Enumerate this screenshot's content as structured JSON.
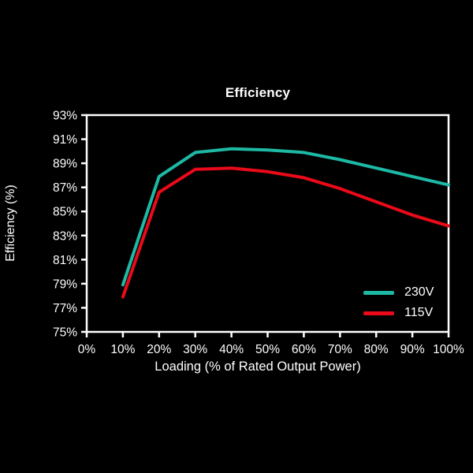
{
  "chart_data": {
    "type": "line",
    "title": "Efficiency",
    "xlabel": "Loading (% of Rated Output Power)",
    "ylabel": "Efficiency (%)",
    "x": [
      10,
      20,
      30,
      40,
      50,
      60,
      70,
      80,
      90,
      100
    ],
    "series": [
      {
        "name": "230V",
        "color": "#1db9a5",
        "values": [
          78.9,
          87.9,
          89.9,
          90.2,
          90.1,
          89.9,
          89.3,
          88.6,
          87.9,
          87.2
        ]
      },
      {
        "name": "115V",
        "color": "#eb0a19",
        "values": [
          77.9,
          86.6,
          88.5,
          88.6,
          88.3,
          87.8,
          86.9,
          85.8,
          84.7,
          83.8
        ]
      }
    ],
    "xlim": [
      0,
      100
    ],
    "ylim": [
      75,
      93
    ],
    "xtick_step": 10,
    "ytick_step": 2,
    "tick_suffix": "%",
    "grid": false,
    "legend_position": "bottom-right",
    "colors": {
      "background": "#000000",
      "axis": "#ffffff",
      "text": "#ffffff"
    }
  }
}
